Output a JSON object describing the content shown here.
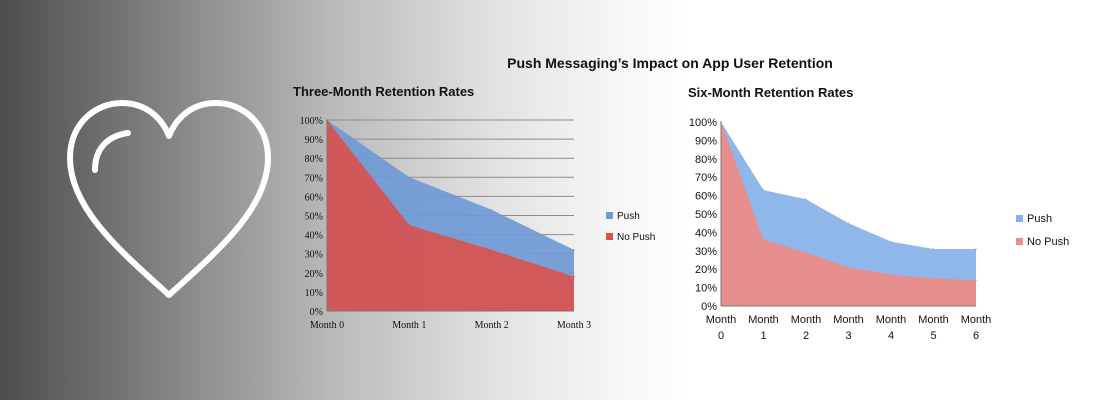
{
  "banner": {
    "title": "Push Messaging’s Impact on App User Retention",
    "icon": "heart-icon"
  },
  "colors": {
    "push_area": "#6f9ad6",
    "no_push_area": "#d9534f",
    "push_area_light": "#87b1e8",
    "no_push_area_light": "#ef8a86",
    "gridline": "#8c8c8c",
    "icon_stroke": "#ffffff"
  },
  "chart_data": [
    {
      "type": "area",
      "title": "Three-Month Retention Rates",
      "categories": [
        "Month 0",
        "Month 1",
        "Month 2",
        "Month 3"
      ],
      "y_ticks": [
        "0%",
        "10%",
        "20%",
        "30%",
        "40%",
        "50%",
        "60%",
        "70%",
        "80%",
        "90%",
        "100%"
      ],
      "ylim": [
        0,
        100
      ],
      "series": [
        {
          "name": "Push",
          "values": [
            100,
            70,
            53,
            32
          ]
        },
        {
          "name": "No Push",
          "values": [
            100,
            45,
            32,
            18
          ]
        }
      ],
      "grid": true,
      "legend": "right"
    },
    {
      "type": "area",
      "title": "Six-Month Retention Rates",
      "categories": [
        "Month 0",
        "Month 1",
        "Month 2",
        "Month 3",
        "Month 4",
        "Month 5",
        "Month 6"
      ],
      "y_ticks": [
        "0%",
        "10%",
        "20%",
        "30%",
        "40%",
        "50%",
        "60%",
        "70%",
        "80%",
        "90%",
        "100%"
      ],
      "ylim": [
        0,
        100
      ],
      "series": [
        {
          "name": "Push",
          "values": [
            100,
            63,
            58,
            45,
            35,
            31,
            31
          ]
        },
        {
          "name": "No Push",
          "values": [
            100,
            36,
            29,
            21,
            17,
            15,
            14
          ]
        }
      ],
      "grid": false,
      "legend": "right"
    }
  ]
}
